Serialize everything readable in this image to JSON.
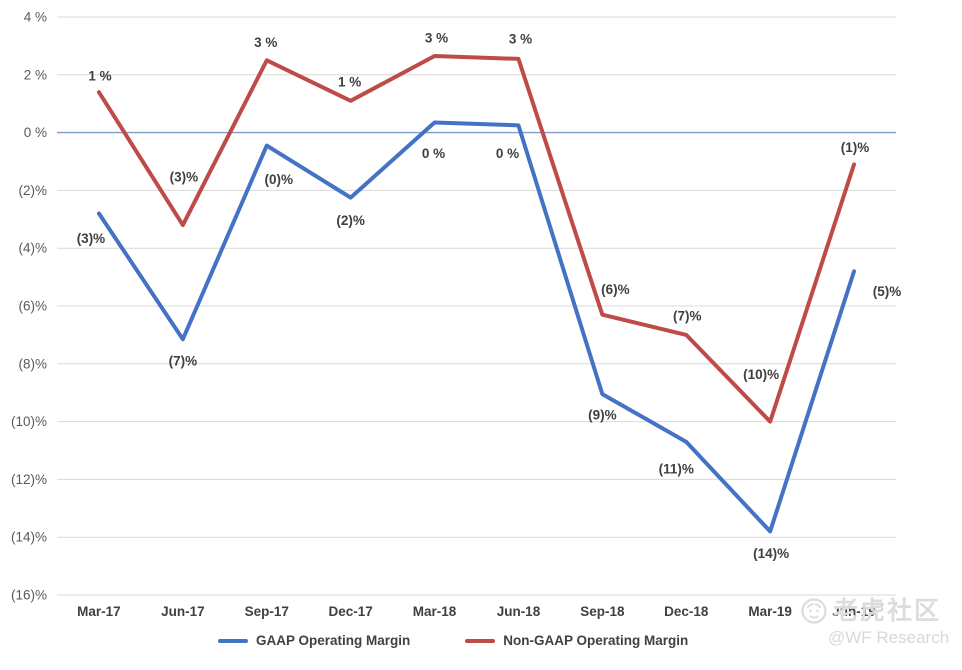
{
  "watermark": {
    "community": "老虎社区",
    "handle": "@WF Research"
  },
  "chart_data": {
    "type": "line",
    "title": "",
    "xlabel": "",
    "ylabel": "",
    "ylim": [
      -16,
      4
    ],
    "grid": true,
    "legend_position": "bottom",
    "categories": [
      "Mar-17",
      "Jun-17",
      "Sep-17",
      "Dec-17",
      "Mar-18",
      "Jun-18",
      "Sep-18",
      "Dec-18",
      "Mar-19",
      "Jun-19"
    ],
    "y_ticks": [
      {
        "value": 4,
        "label": "4 %"
      },
      {
        "value": 2,
        "label": "2 %"
      },
      {
        "value": 0,
        "label": "0 %"
      },
      {
        "value": -2,
        "label": "(2)%"
      },
      {
        "value": -4,
        "label": "(4)%"
      },
      {
        "value": -6,
        "label": "(6)%"
      },
      {
        "value": -8,
        "label": "(8)%"
      },
      {
        "value": -10,
        "label": "(10)%"
      },
      {
        "value": -12,
        "label": "(12)%"
      },
      {
        "value": -14,
        "label": "(14)%"
      },
      {
        "value": -16,
        "label": "(16)%"
      }
    ],
    "series": [
      {
        "key": "gaap",
        "name": "GAAP Operating Margin",
        "color": "#4472C4",
        "values": [
          -3,
          -7,
          0,
          -2,
          0,
          0,
          -9,
          -11,
          -14,
          -5
        ],
        "values_plot": [
          -2.8,
          -7.15,
          -0.45,
          -2.25,
          0.35,
          0.25,
          -9.05,
          -10.7,
          -13.8,
          -4.8
        ],
        "labels": [
          "(3)%",
          "(7)%",
          "(0)%",
          "(2)%",
          "0 %",
          "0 %",
          "(9)%",
          "(11)%",
          "(14)%",
          "(5)%"
        ],
        "label_offsets": [
          [
            -8,
            25
          ],
          [
            0,
            22
          ],
          [
            12,
            34
          ],
          [
            0,
            23
          ],
          [
            -1,
            31
          ],
          [
            -11,
            28
          ],
          [
            0,
            21
          ],
          [
            -10,
            27
          ],
          [
            1,
            22
          ],
          [
            33,
            20
          ]
        ]
      },
      {
        "key": "non-gaap",
        "name": "Non-GAAP Operating Margin",
        "color": "#BE4B48",
        "values": [
          1,
          -3,
          3,
          1,
          3,
          3,
          -6,
          -7,
          -10,
          -1
        ],
        "values_plot": [
          1.4,
          -3.2,
          2.5,
          1.1,
          2.65,
          2.55,
          -6.3,
          -7.0,
          -10.0,
          -1.1
        ],
        "labels": [
          "1 %",
          "(3)%",
          "3 %",
          "1 %",
          "3 %",
          "3 %",
          "(6)%",
          "(7)%",
          "(10)%",
          "(1)%"
        ],
        "label_offsets": [
          [
            1,
            -16
          ],
          [
            1,
            -48
          ],
          [
            -1,
            -18
          ],
          [
            -1,
            -19
          ],
          [
            2,
            -18
          ],
          [
            2,
            -20
          ],
          [
            13,
            -25
          ],
          [
            1,
            -19
          ],
          [
            -9,
            -47
          ],
          [
            1,
            -17
          ]
        ]
      }
    ],
    "colors": {
      "grid": "#D9D9D9",
      "zero_line": "#7F9DC4",
      "y_tick_text": "#595959",
      "label_text": "#404040"
    }
  }
}
